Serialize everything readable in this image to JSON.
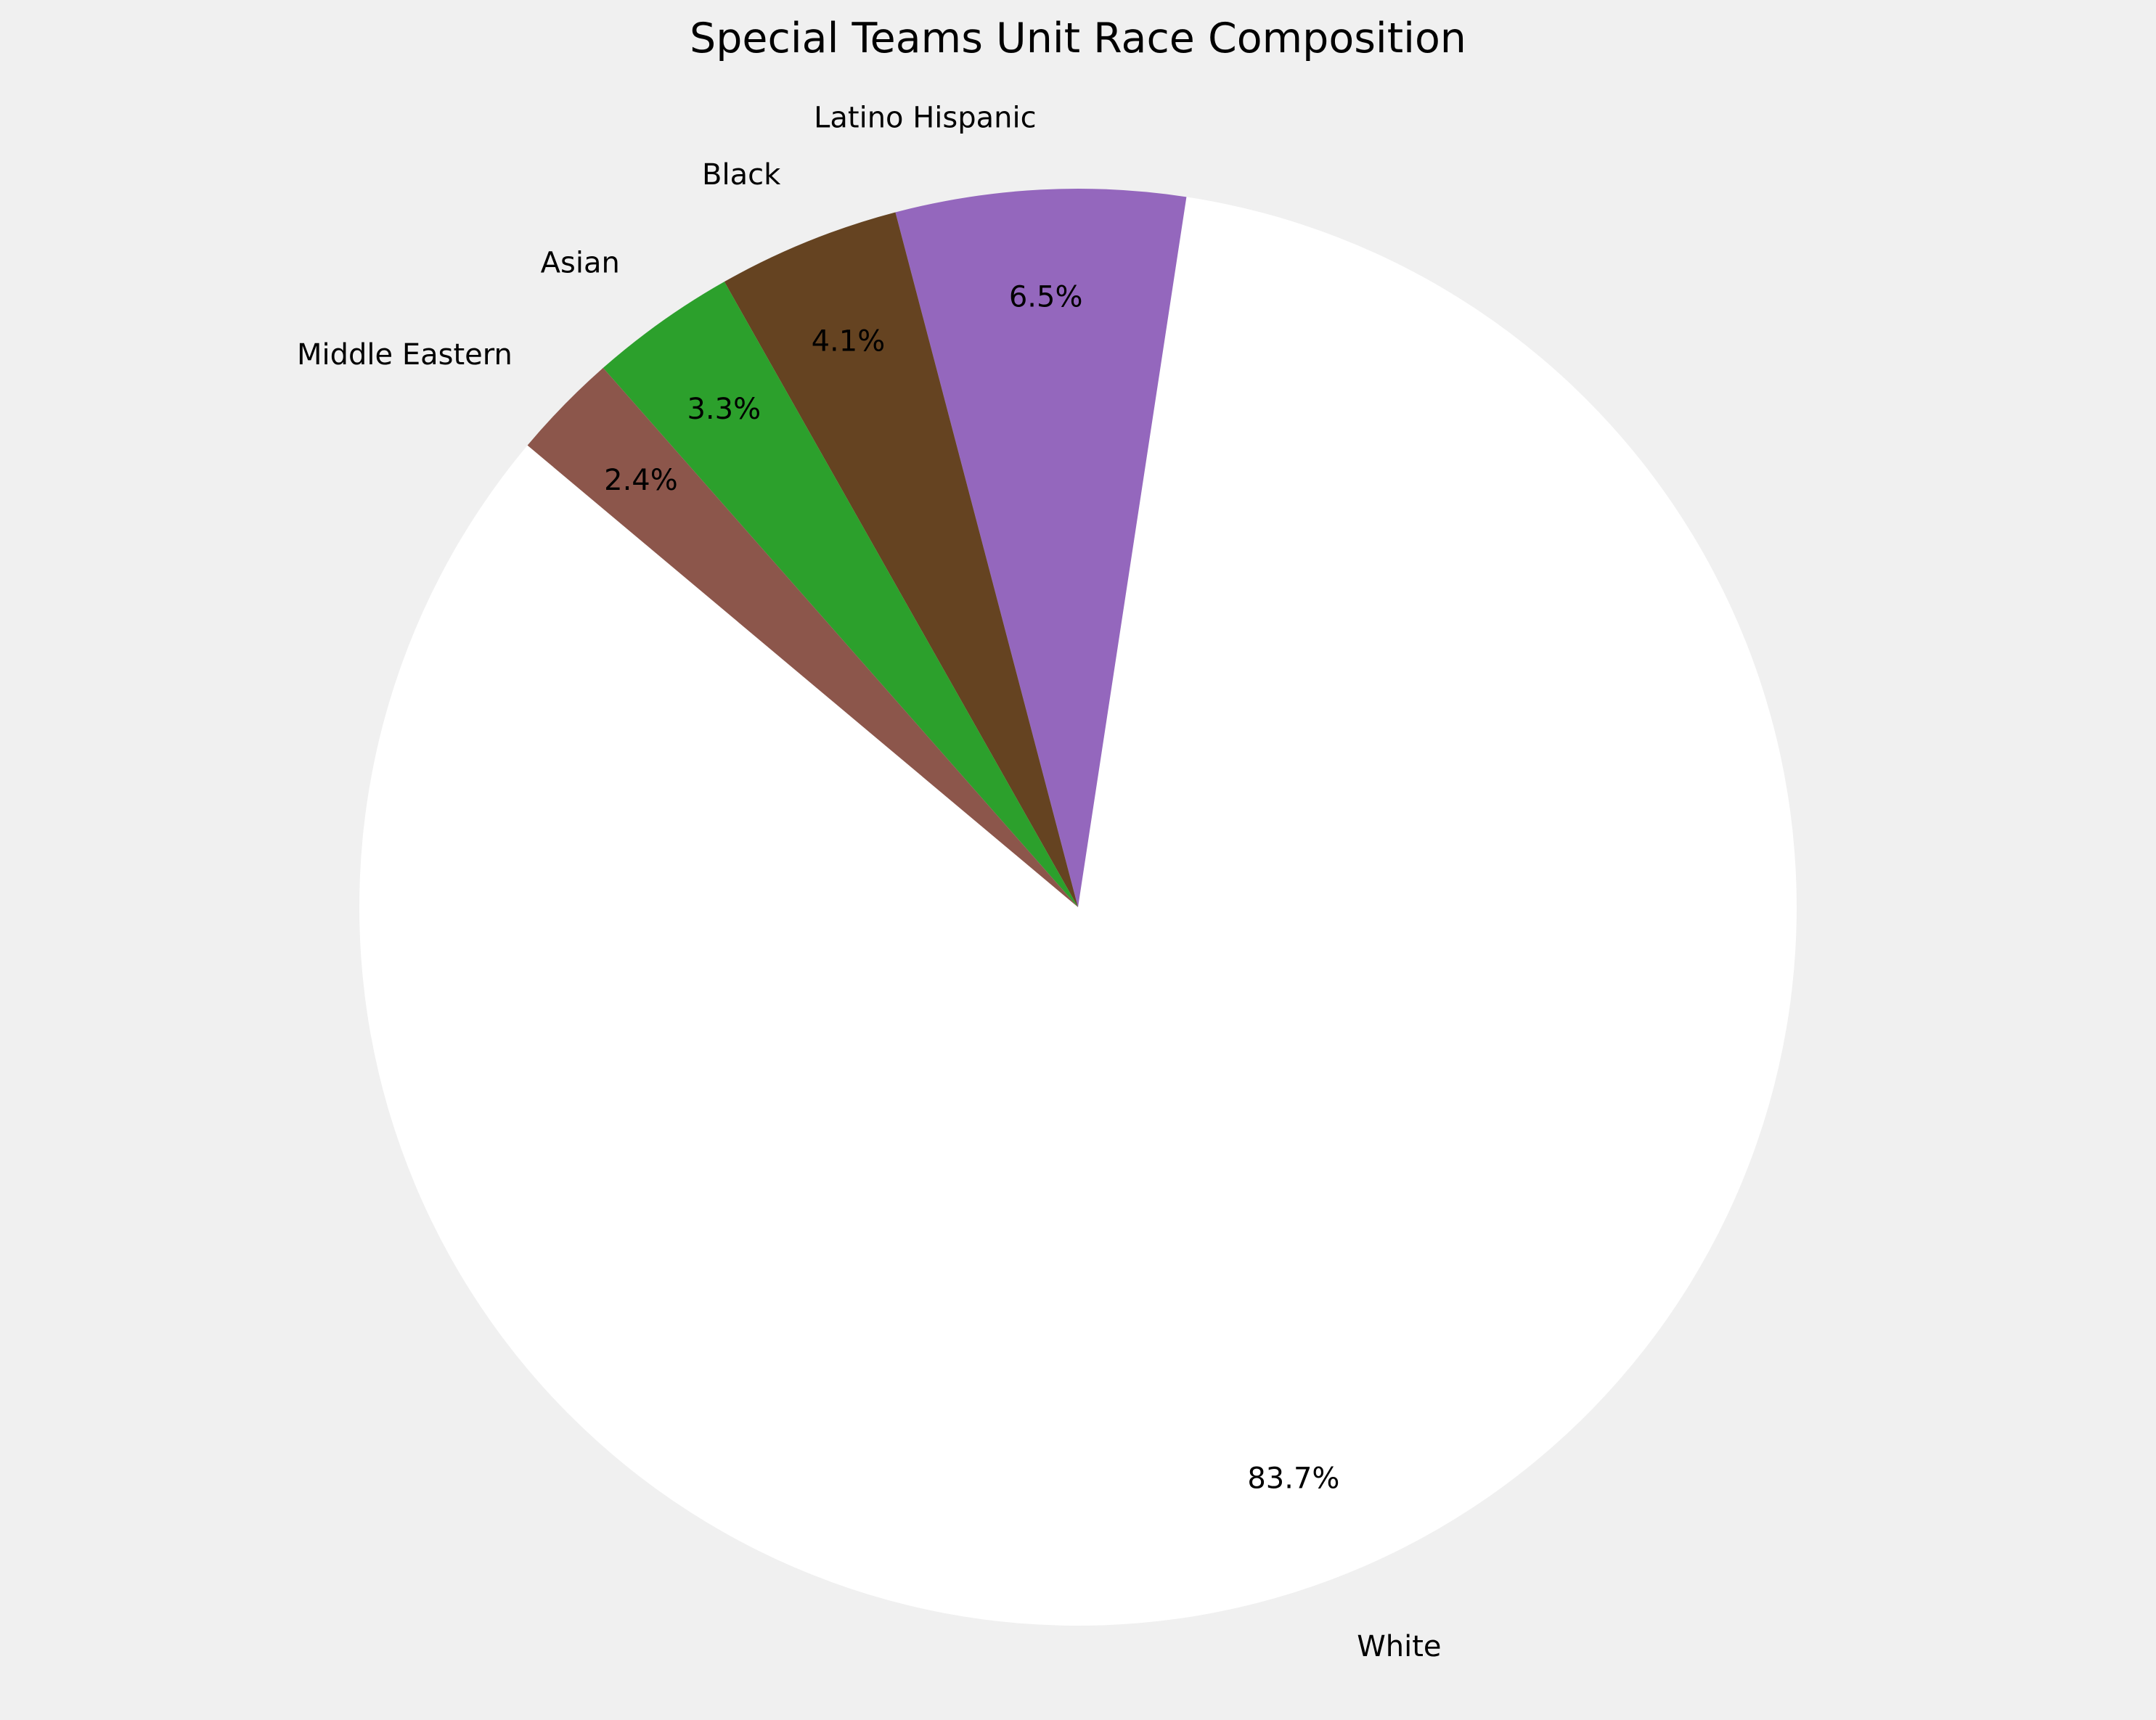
{
  "chart_data": {
    "type": "pie",
    "title": "Special Teams Unit Race Composition",
    "categories": [
      "White",
      "Latino Hispanic",
      "Black",
      "Asian",
      "Middle Eastern"
    ],
    "values": [
      83.7,
      6.5,
      4.1,
      3.3,
      2.4
    ],
    "value_labels": [
      "83.7%",
      "6.5%",
      "4.1%",
      "3.3%",
      "2.4%"
    ],
    "colors": [
      "#ffffff",
      "#9467bd",
      "#654321",
      "#2ca02c",
      "#8c564b"
    ],
    "start_angle_deg": 140,
    "direction": "counterclockwise",
    "legend": "none"
  }
}
